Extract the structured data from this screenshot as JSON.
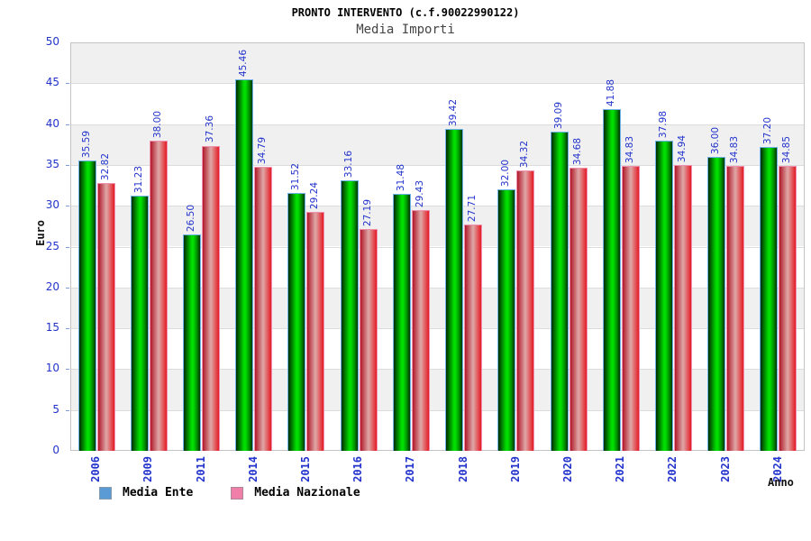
{
  "chart_data": {
    "type": "bar",
    "title": "PRONTO INTERVENTO (c.f.90022990122)",
    "subtitle": "Media Importi",
    "categories": [
      "2006",
      "2009",
      "2011",
      "2014",
      "2015",
      "2016",
      "2017",
      "2018",
      "2019",
      "2020",
      "2021",
      "2022",
      "2023",
      "2024"
    ],
    "series": [
      {
        "name": "Media Ente",
        "values": [
          35.59,
          31.23,
          26.5,
          45.46,
          31.52,
          33.16,
          31.48,
          39.42,
          32.0,
          39.09,
          41.88,
          37.98,
          36.0,
          37.2
        ]
      },
      {
        "name": "Media Nazionale",
        "values": [
          32.82,
          38.0,
          37.36,
          34.79,
          29.24,
          27.19,
          29.43,
          27.71,
          34.32,
          34.68,
          34.83,
          34.94,
          34.83,
          34.85
        ]
      }
    ],
    "xlabel": "Anno",
    "ylabel": "Euro",
    "ylim": [
      0,
      50
    ],
    "ytick_step": 5,
    "yticks": [
      0,
      5,
      10,
      15,
      20,
      25,
      30,
      35,
      40,
      45,
      50
    ],
    "grid": "horizontal alternating bands",
    "legend_position": "bottom-left",
    "value_label_format": "2-decimals, rotated 90°, blue"
  },
  "colors": {
    "value_label": "#2233cc",
    "axis_tick_label": "#2233cc",
    "bar_green_mid": "#00dd00",
    "bar_green_border": "#6db3e8",
    "bar_red_left": "#b01828",
    "bar_red_mid": "#dfa8a8",
    "bar_red_right": "#e41c24",
    "bar_red_border": "#f090b0",
    "legend_ente": "#5b9bd5",
    "legend_nazionale": "#ef7fa7",
    "band_alt": "#f0f0f0",
    "grid_line": "#dcdcdc"
  }
}
